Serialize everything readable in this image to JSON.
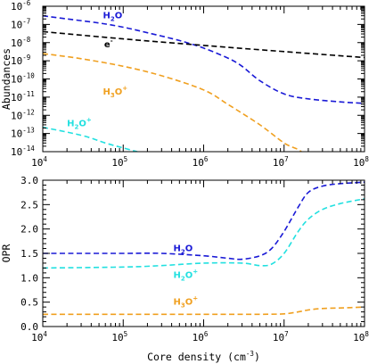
{
  "chart_data": [
    {
      "type": "line",
      "ylabel": "Abundances",
      "xlabel": "",
      "xscale": "log",
      "yscale": "log",
      "xlim": [
        10000,
        100000000
      ],
      "ylim": [
        1e-14,
        1e-06
      ],
      "x_ticks": [
        {
          "base": "10",
          "exp": "4",
          "value": 10000
        },
        {
          "base": "10",
          "exp": "5",
          "value": 100000
        },
        {
          "base": "10",
          "exp": "6",
          "value": 1000000
        },
        {
          "base": "10",
          "exp": "7",
          "value": 10000000
        },
        {
          "base": "10",
          "exp": "8",
          "value": 100000000
        }
      ],
      "y_ticks": [
        {
          "base": "10",
          "exp": "-6",
          "value": 1e-06
        },
        {
          "base": "10",
          "exp": "-7",
          "value": 1e-07
        },
        {
          "base": "10",
          "exp": "-8",
          "value": 1e-08
        },
        {
          "base": "10",
          "exp": "-9",
          "value": 1e-09
        },
        {
          "base": "10",
          "exp": "-10",
          "value": 1e-10
        },
        {
          "base": "10",
          "exp": "-11",
          "value": 1e-11
        },
        {
          "base": "10",
          "exp": "-12",
          "value": 1e-12
        },
        {
          "base": "10",
          "exp": "-13",
          "value": 1e-13
        },
        {
          "base": "10",
          "exp": "-14",
          "value": 1e-14
        }
      ],
      "series": [
        {
          "name": "H2O",
          "label_main": "H",
          "label_sub": "2",
          "label_rest": "O",
          "label_sup": "",
          "label_at": [
            56000,
            2.2e-07
          ],
          "color": "#1a1ad6",
          "x": [
            10000,
            20000,
            50000,
            100000,
            200000,
            500000,
            1000000,
            2000000,
            3000000,
            5000000,
            10000000,
            20000000,
            50000000,
            100000000
          ],
          "y": [
            3e-07,
            2e-07,
            1.2e-07,
            7e-08,
            3.5e-08,
            1.3e-08,
            5e-09,
            1.4e-09,
            5e-10,
            8e-11,
            1.5e-11,
            8e-12,
            5.5e-12,
            4.5e-12
          ]
        },
        {
          "name": "e-",
          "label_main": "e",
          "label_sub": "",
          "label_rest": "",
          "label_sup": "-",
          "label_at": [
            58000,
            5.5e-09
          ],
          "color": "#000000",
          "x": [
            10000,
            100000,
            1000000,
            10000000,
            100000000
          ],
          "y": [
            4e-08,
            1.6e-08,
            7e-09,
            3.2e-09,
            1.5e-09
          ]
        },
        {
          "name": "H3O+",
          "label_main": "H",
          "label_sub": "3",
          "label_rest": "O",
          "label_sup": "+",
          "label_at": [
            56000,
            1.4e-11
          ],
          "color": "#f0a020",
          "x": [
            10000,
            30000,
            100000,
            300000,
            1000000,
            2000000,
            5000000,
            10000000,
            15000000,
            18000000
          ],
          "y": [
            2.5e-09,
            1.3e-09,
            5e-10,
            1.5e-10,
            2.5e-11,
            4e-12,
            3e-13,
            3e-14,
            1.3e-14,
            7e-15
          ]
        },
        {
          "name": "H2O+",
          "label_main": "H",
          "label_sub": "2",
          "label_rest": "O",
          "label_sup": "+",
          "label_at": [
            20000,
            2.5e-13
          ],
          "color": "#22e0e0",
          "x": [
            10000,
            30000,
            60000,
            100000,
            150000
          ],
          "y": [
            2.2e-13,
            8e-14,
            3e-14,
            1.6e-14,
            1e-14
          ]
        }
      ]
    },
    {
      "type": "line",
      "ylabel": "OPR",
      "xlabel_main": "Core density (cm",
      "xlabel_sup": "-3",
      "xlabel_end": ")",
      "xscale": "log",
      "yscale": "linear",
      "xlim": [
        10000,
        100000000
      ],
      "ylim": [
        0,
        3
      ],
      "x_ticks": [
        {
          "base": "10",
          "exp": "4",
          "value": 10000
        },
        {
          "base": "10",
          "exp": "5",
          "value": 100000
        },
        {
          "base": "10",
          "exp": "6",
          "value": 1000000
        },
        {
          "base": "10",
          "exp": "7",
          "value": 10000000
        },
        {
          "base": "10",
          "exp": "8",
          "value": 100000000
        }
      ],
      "y_ticks": [
        {
          "label": "0.0",
          "value": 0
        },
        {
          "label": "0.5",
          "value": 0.5
        },
        {
          "label": "1.0",
          "value": 1.0
        },
        {
          "label": "1.5",
          "value": 1.5
        },
        {
          "label": "2.0",
          "value": 2.0
        },
        {
          "label": "2.5",
          "value": 2.5
        },
        {
          "label": "3.0",
          "value": 3.0
        }
      ],
      "series": [
        {
          "name": "H2O",
          "label_main": "H",
          "label_sub": "2",
          "label_rest": "O",
          "label_sup": "",
          "label_at": [
            420000,
            1.55
          ],
          "color": "#1a1ad6",
          "x": [
            10000,
            100000,
            300000,
            1000000,
            2000000,
            3000000,
            5000000,
            7000000,
            10000000,
            15000000,
            20000000,
            30000000,
            50000000,
            100000000
          ],
          "y": [
            1.5,
            1.5,
            1.5,
            1.45,
            1.4,
            1.38,
            1.45,
            1.6,
            1.95,
            2.45,
            2.75,
            2.88,
            2.93,
            2.96
          ]
        },
        {
          "name": "H2O+",
          "label_main": "H",
          "label_sub": "2",
          "label_rest": "O",
          "label_sup": "+",
          "label_at": [
            420000,
            1.0
          ],
          "color": "#22e0e0",
          "x": [
            10000,
            100000,
            300000,
            1000000,
            3000000,
            5000000,
            7000000,
            10000000,
            15000000,
            20000000,
            30000000,
            50000000,
            100000000
          ],
          "y": [
            1.2,
            1.22,
            1.25,
            1.3,
            1.3,
            1.25,
            1.28,
            1.5,
            1.95,
            2.2,
            2.4,
            2.52,
            2.62
          ]
        },
        {
          "name": "H3O+",
          "label_main": "H",
          "label_sub": "3",
          "label_rest": "O",
          "label_sup": "+",
          "label_at": [
            420000,
            0.45
          ],
          "color": "#f0a020",
          "x": [
            10000,
            100000,
            1000000,
            5000000,
            10000000,
            15000000,
            20000000,
            30000000,
            50000000,
            100000000
          ],
          "y": [
            0.25,
            0.25,
            0.25,
            0.25,
            0.26,
            0.3,
            0.34,
            0.37,
            0.38,
            0.4
          ]
        }
      ]
    }
  ]
}
